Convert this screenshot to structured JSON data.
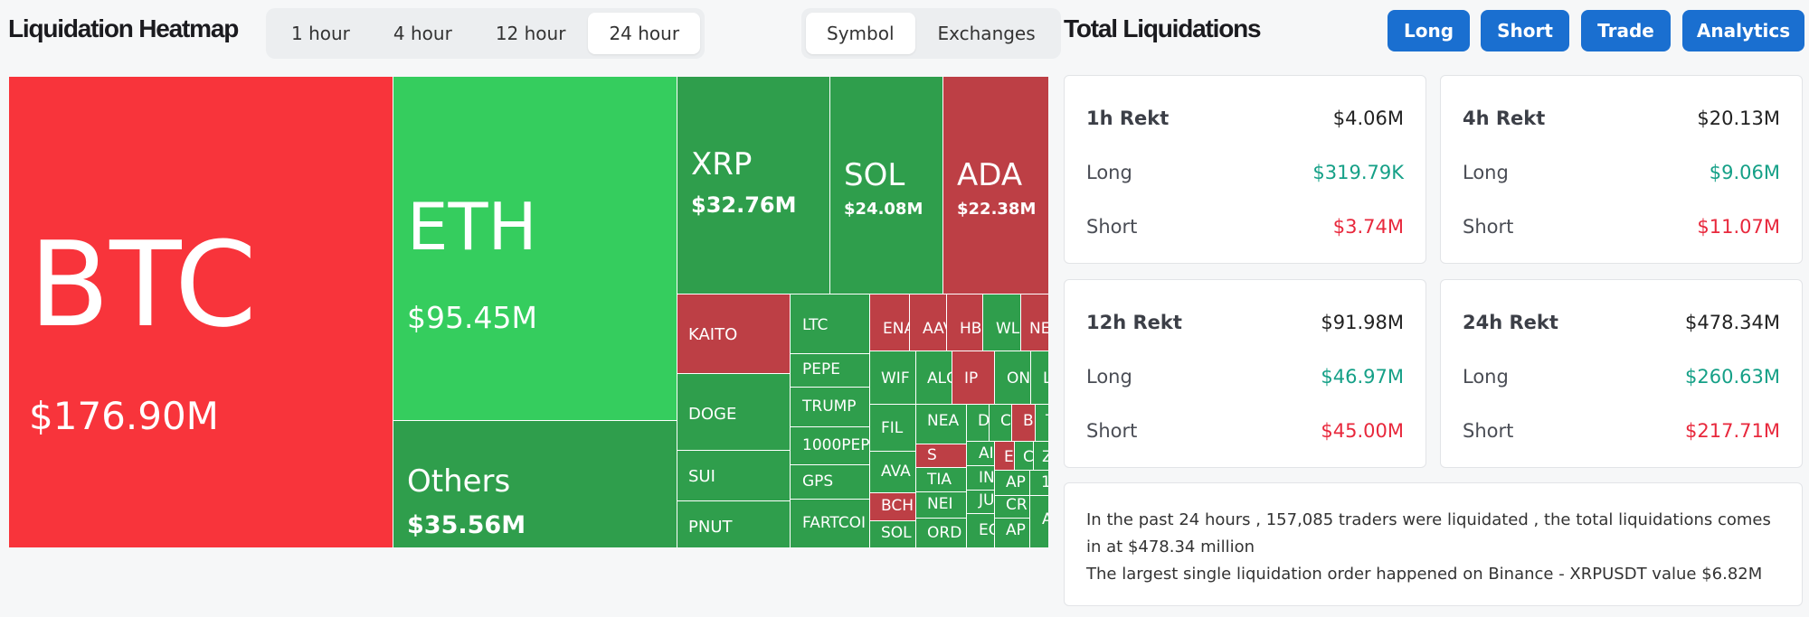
{
  "header": {
    "heatmap_title": "Liquidation Heatmap",
    "total_title": "Total Liquidations",
    "timeframes": [
      "1 hour",
      "4 hour",
      "12 hour",
      "24 hour"
    ],
    "active_timeframe": "24 hour",
    "group_by": [
      "Symbol",
      "Exchanges"
    ],
    "active_group": "Symbol",
    "actions": [
      "Long",
      "Short",
      "Trade",
      "Analytics"
    ]
  },
  "colors": {
    "bright_red": "#f8343b",
    "bright_green": "#35cd5e",
    "green": "#2f9e4c",
    "red": "#bd3f45",
    "accent_blue": "#1a6fd0",
    "long_text": "#15a087",
    "short_text": "#e8283c"
  },
  "heatmap": {
    "tiles": [
      {
        "symbol": "BTC",
        "value": "$176.90M",
        "side": "short"
      },
      {
        "symbol": "ETH",
        "value": "$95.45M",
        "side": "long"
      },
      {
        "symbol": "Others",
        "value": "$35.56M",
        "side": "long"
      },
      {
        "symbol": "XRP",
        "value": "$32.76M",
        "side": "long"
      },
      {
        "symbol": "SOL",
        "value": "$24.08M",
        "side": "long"
      },
      {
        "symbol": "ADA",
        "value": "$22.38M",
        "side": "short"
      },
      {
        "symbol": "KAITO",
        "side": "short"
      },
      {
        "symbol": "DOGE",
        "side": "long"
      },
      {
        "symbol": "SUI",
        "side": "long"
      },
      {
        "symbol": "PNUT",
        "side": "long"
      },
      {
        "symbol": "LTC",
        "side": "long"
      },
      {
        "symbol": "PEPE",
        "side": "long"
      },
      {
        "symbol": "TRUMP",
        "side": "long"
      },
      {
        "symbol": "1000PEPE",
        "side": "long"
      },
      {
        "symbol": "GPS",
        "side": "long"
      },
      {
        "symbol": "FARTCOI",
        "side": "long"
      },
      {
        "symbol": "ENA",
        "side": "short"
      },
      {
        "symbol": "AAV",
        "side": "short"
      },
      {
        "symbol": "HB",
        "side": "short"
      },
      {
        "symbol": "WL",
        "side": "long"
      },
      {
        "symbol": "NE",
        "side": "short"
      },
      {
        "symbol": "WIF",
        "side": "long"
      },
      {
        "symbol": "ALC",
        "side": "long"
      },
      {
        "symbol": "IP",
        "side": "short"
      },
      {
        "symbol": "ON",
        "side": "long"
      },
      {
        "symbol": "LI",
        "side": "long"
      },
      {
        "symbol": "FIL",
        "side": "long"
      },
      {
        "symbol": "NEA",
        "side": "long"
      },
      {
        "symbol": "D",
        "side": "long"
      },
      {
        "symbol": "C",
        "side": "long"
      },
      {
        "symbol": "B",
        "side": "short"
      },
      {
        "symbol": "T",
        "side": "long"
      },
      {
        "symbol": "AVA",
        "side": "long"
      },
      {
        "symbol": "S",
        "side": "short"
      },
      {
        "symbol": "AI",
        "side": "long"
      },
      {
        "symbol": "E",
        "side": "short"
      },
      {
        "symbol": "C",
        "side": "long"
      },
      {
        "symbol": "Z",
        "side": "long"
      },
      {
        "symbol": "TIA",
        "side": "long"
      },
      {
        "symbol": "IN",
        "side": "long"
      },
      {
        "symbol": "BCH",
        "side": "short"
      },
      {
        "symbol": "NEI",
        "side": "long"
      },
      {
        "symbol": "JU",
        "side": "long"
      },
      {
        "symbol": "AP",
        "side": "long"
      },
      {
        "symbol": "1",
        "side": "long"
      },
      {
        "symbol": "CR",
        "side": "long"
      },
      {
        "symbol": "SOL",
        "side": "long"
      },
      {
        "symbol": "ORD",
        "side": "long"
      },
      {
        "symbol": "EO",
        "side": "long"
      },
      {
        "symbol": "AP",
        "side": "long"
      },
      {
        "symbol": "A",
        "side": "long"
      }
    ]
  },
  "stats": [
    {
      "title": "1h Rekt",
      "total": "$4.06M",
      "long_label": "Long",
      "long": "$319.79K",
      "short_label": "Short",
      "short": "$3.74M"
    },
    {
      "title": "4h Rekt",
      "total": "$20.13M",
      "long_label": "Long",
      "long": "$9.06M",
      "short_label": "Short",
      "short": "$11.07M"
    },
    {
      "title": "12h Rekt",
      "total": "$91.98M",
      "long_label": "Long",
      "long": "$46.97M",
      "short_label": "Short",
      "short": "$45.00M"
    },
    {
      "title": "24h Rekt",
      "total": "$478.34M",
      "long_label": "Long",
      "long": "$260.63M",
      "short_label": "Short",
      "short": "$217.71M"
    }
  ],
  "summary": {
    "line1": "In the past 24 hours , 157,085 traders were liquidated , the total liquidations comes in at $478.34 million",
    "line2": "The largest single liquidation order happened on Binance - XRPUSDT value $6.82M"
  }
}
